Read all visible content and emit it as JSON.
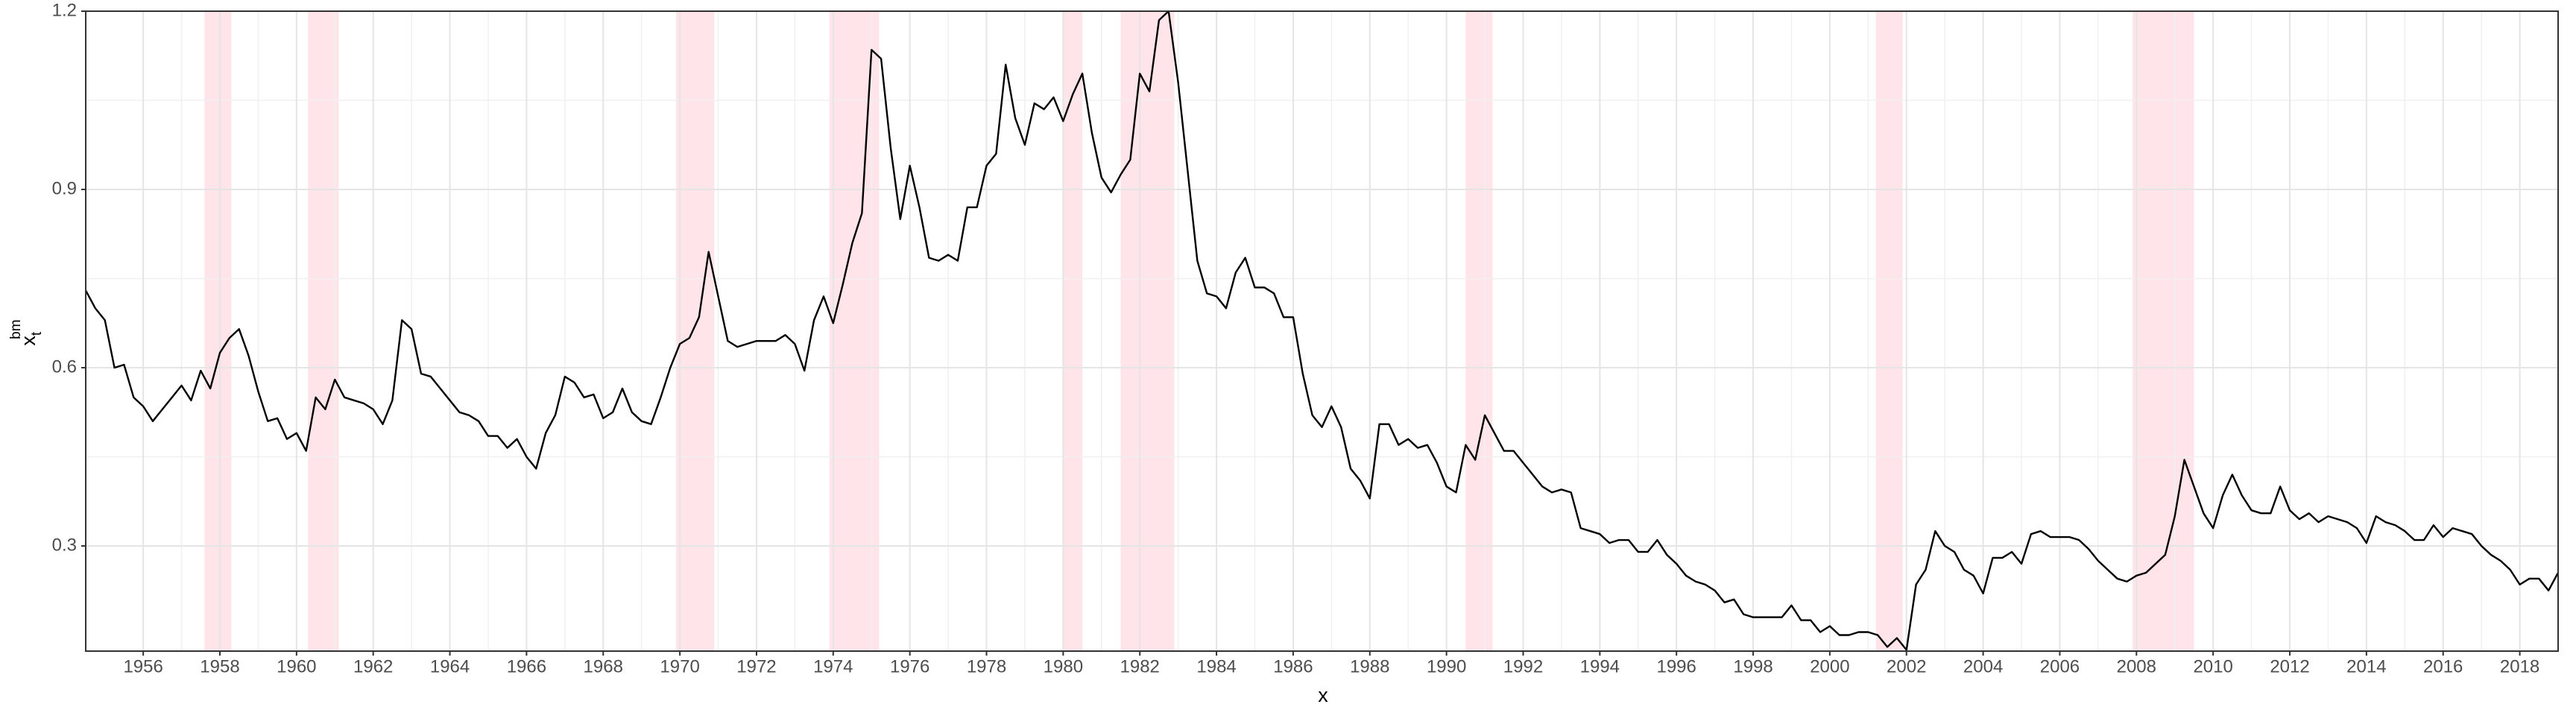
{
  "chart_data": {
    "type": "line",
    "xlabel": "x",
    "ylabel": "x",
    "ylabel_sub": "t",
    "ylabel_sup": "bm",
    "xlim": [
      1954.5,
      2019
    ],
    "ylim": [
      0.123,
      1.2
    ],
    "xticks": [
      1956,
      1958,
      1960,
      1962,
      1964,
      1966,
      1968,
      1970,
      1972,
      1974,
      1976,
      1978,
      1980,
      1982,
      1984,
      1986,
      1988,
      1990,
      1992,
      1994,
      1996,
      1998,
      2000,
      2002,
      2004,
      2006,
      2008,
      2010,
      2012,
      2014,
      2016,
      2018
    ],
    "yticks": [
      0.3,
      0.6,
      0.9,
      1.2
    ],
    "grid": true,
    "shade_color": "#ffe4ea",
    "shaded_periods": [
      [
        1957.6,
        1958.3
      ],
      [
        1960.3,
        1961.1
      ],
      [
        1969.9,
        1970.9
      ],
      [
        1973.9,
        1975.2
      ],
      [
        1980.0,
        1980.5
      ],
      [
        1981.5,
        1982.9
      ],
      [
        1990.5,
        1991.2
      ],
      [
        2001.2,
        2001.9
      ],
      [
        2007.9,
        2009.5
      ]
    ],
    "x": [
      1954.5,
      1954.75,
      1955,
      1955.25,
      1955.5,
      1955.75,
      1956,
      1956.25,
      1956.5,
      1956.75,
      1957,
      1957.25,
      1957.5,
      1957.75,
      1958,
      1958.25,
      1958.5,
      1958.75,
      1959,
      1959.25,
      1959.5,
      1959.75,
      1960,
      1960.25,
      1960.5,
      1960.75,
      1961,
      1961.25,
      1961.5,
      1961.75,
      1962,
      1962.25,
      1962.5,
      1962.75,
      1963,
      1963.25,
      1963.5,
      1963.75,
      1964,
      1964.25,
      1964.5,
      1964.75,
      1965,
      1965.25,
      1965.5,
      1965.75,
      1966,
      1966.25,
      1966.5,
      1966.75,
      1967,
      1967.25,
      1967.5,
      1967.75,
      1968,
      1968.25,
      1968.5,
      1968.75,
      1969,
      1969.25,
      1969.5,
      1969.75,
      1970,
      1970.25,
      1970.5,
      1970.75,
      1971,
      1971.25,
      1971.5,
      1971.75,
      1972,
      1972.25,
      1972.5,
      1972.75,
      1973,
      1973.25,
      1973.5,
      1973.75,
      1974,
      1974.25,
      1974.5,
      1974.75,
      1975,
      1975.25,
      1975.5,
      1975.75,
      1976,
      1976.25,
      1976.5,
      1976.75,
      1977,
      1977.25,
      1977.5,
      1977.75,
      1978,
      1978.25,
      1978.5,
      1978.75,
      1979,
      1979.25,
      1979.5,
      1979.75,
      1980,
      1980.25,
      1980.5,
      1980.75,
      1981,
      1981.25,
      1981.5,
      1981.75,
      1982,
      1982.25,
      1982.5,
      1982.75,
      1983,
      1983.25,
      1983.5,
      1983.75,
      1984,
      1984.25,
      1984.5,
      1984.75,
      1985,
      1985.25,
      1985.5,
      1985.75,
      1986,
      1986.25,
      1986.5,
      1986.75,
      1987,
      1987.25,
      1987.5,
      1987.75,
      1988,
      1988.25,
      1988.5,
      1988.75,
      1989,
      1989.25,
      1989.5,
      1989.75,
      1990,
      1990.25,
      1990.5,
      1990.75,
      1991,
      1991.25,
      1991.5,
      1991.75,
      1992,
      1992.25,
      1992.5,
      1992.75,
      1993,
      1993.25,
      1993.5,
      1993.75,
      1994,
      1994.25,
      1994.5,
      1994.75,
      1995,
      1995.25,
      1995.5,
      1995.75,
      1996,
      1996.25,
      1996.5,
      1996.75,
      1997,
      1997.25,
      1997.5,
      1997.75,
      1998,
      1998.25,
      1998.5,
      1998.75,
      1999,
      1999.25,
      1999.5,
      1999.75,
      2000,
      2000.25,
      2000.5,
      2000.75,
      2001,
      2001.25,
      2001.5,
      2001.75,
      2002,
      2002.25,
      2002.5,
      2002.75,
      2003,
      2003.25,
      2003.5,
      2003.75,
      2004,
      2004.25,
      2004.5,
      2004.75,
      2005,
      2005.25,
      2005.5,
      2005.75,
      2006,
      2006.25,
      2006.5,
      2006.75,
      2007,
      2007.25,
      2007.5,
      2007.75,
      2008,
      2008.25,
      2008.5,
      2008.75,
      2009,
      2009.25,
      2009.5,
      2009.75,
      2010,
      2010.25,
      2010.5,
      2010.75,
      2011,
      2011.25,
      2011.5,
      2011.75,
      2012,
      2012.25,
      2012.5,
      2012.75,
      2013,
      2013.25,
      2013.5,
      2013.75,
      2014,
      2014.25,
      2014.5,
      2014.75,
      2015,
      2015.25,
      2015.5,
      2015.75,
      2016,
      2016.25,
      2016.5,
      2016.75,
      2017,
      2017.25,
      2017.5,
      2017.75,
      2018,
      2018.25,
      2018.5,
      2018.75,
      2019
    ],
    "series": [
      {
        "color": "#000000",
        "values": [
          0.73,
          0.7,
          0.68,
          0.6,
          0.605,
          0.55,
          0.535,
          0.51,
          0.53,
          0.55,
          0.57,
          0.545,
          0.595,
          0.565,
          0.625,
          0.65,
          0.665,
          0.62,
          0.56,
          0.51,
          0.515,
          0.48,
          0.49,
          0.46,
          0.55,
          0.53,
          0.58,
          0.55,
          0.545,
          0.54,
          0.53,
          0.505,
          0.545,
          0.68,
          0.665,
          0.59,
          0.585,
          0.565,
          0.545,
          0.525,
          0.52,
          0.51,
          0.485,
          0.485,
          0.465,
          0.48,
          0.45,
          0.43,
          0.49,
          0.52,
          0.585,
          0.575,
          0.55,
          0.555,
          0.515,
          0.525,
          0.565,
          0.525,
          0.51,
          0.505,
          0.55,
          0.6,
          0.64,
          0.65,
          0.685,
          0.795,
          0.72,
          0.645,
          0.635,
          0.64,
          0.645,
          0.645,
          0.645,
          0.655,
          0.64,
          0.595,
          0.68,
          0.72,
          0.675,
          0.74,
          0.81,
          0.86,
          1.135,
          1.12,
          0.97,
          0.85,
          0.94,
          0.87,
          0.785,
          0.78,
          0.79,
          0.78,
          0.87,
          0.87,
          0.94,
          0.96,
          1.11,
          1.02,
          0.975,
          1.045,
          1.035,
          1.055,
          1.015,
          1.06,
          1.095,
          0.995,
          0.92,
          0.895,
          0.925,
          0.95,
          1.095,
          1.065,
          1.185,
          1.2,
          1.08,
          0.93,
          0.78,
          0.725,
          0.72,
          0.7,
          0.76,
          0.785,
          0.735,
          0.735,
          0.725,
          0.685,
          0.685,
          0.59,
          0.52,
          0.5,
          0.535,
          0.5,
          0.43,
          0.41,
          0.38,
          0.505,
          0.505,
          0.47,
          0.48,
          0.465,
          0.47,
          0.44,
          0.4,
          0.39,
          0.47,
          0.445,
          0.52,
          0.49,
          0.46,
          0.46,
          0.44,
          0.42,
          0.4,
          0.39,
          0.395,
          0.39,
          0.33,
          0.325,
          0.32,
          0.305,
          0.31,
          0.31,
          0.29,
          0.29,
          0.31,
          0.285,
          0.27,
          0.25,
          0.24,
          0.235,
          0.225,
          0.205,
          0.21,
          0.185,
          0.18,
          0.18,
          0.18,
          0.18,
          0.2,
          0.175,
          0.175,
          0.155,
          0.165,
          0.15,
          0.15,
          0.155,
          0.155,
          0.15,
          0.13,
          0.145,
          0.125,
          0.235,
          0.26,
          0.325,
          0.3,
          0.29,
          0.26,
          0.25,
          0.22,
          0.28,
          0.28,
          0.29,
          0.27,
          0.32,
          0.325,
          0.315,
          0.315,
          0.315,
          0.31,
          0.295,
          0.275,
          0.26,
          0.245,
          0.24,
          0.25,
          0.255,
          0.27,
          0.285,
          0.35,
          0.445,
          0.4,
          0.355,
          0.33,
          0.385,
          0.42,
          0.385,
          0.36,
          0.355,
          0.355,
          0.4,
          0.36,
          0.345,
          0.355,
          0.34,
          0.35,
          0.345,
          0.34,
          0.33,
          0.305,
          0.35,
          0.34,
          0.335,
          0.325,
          0.31,
          0.31,
          0.335,
          0.315,
          0.33,
          0.325,
          0.32,
          0.3,
          0.285,
          0.275,
          0.26,
          0.235,
          0.245,
          0.245,
          0.225,
          0.255
        ]
      }
    ]
  }
}
